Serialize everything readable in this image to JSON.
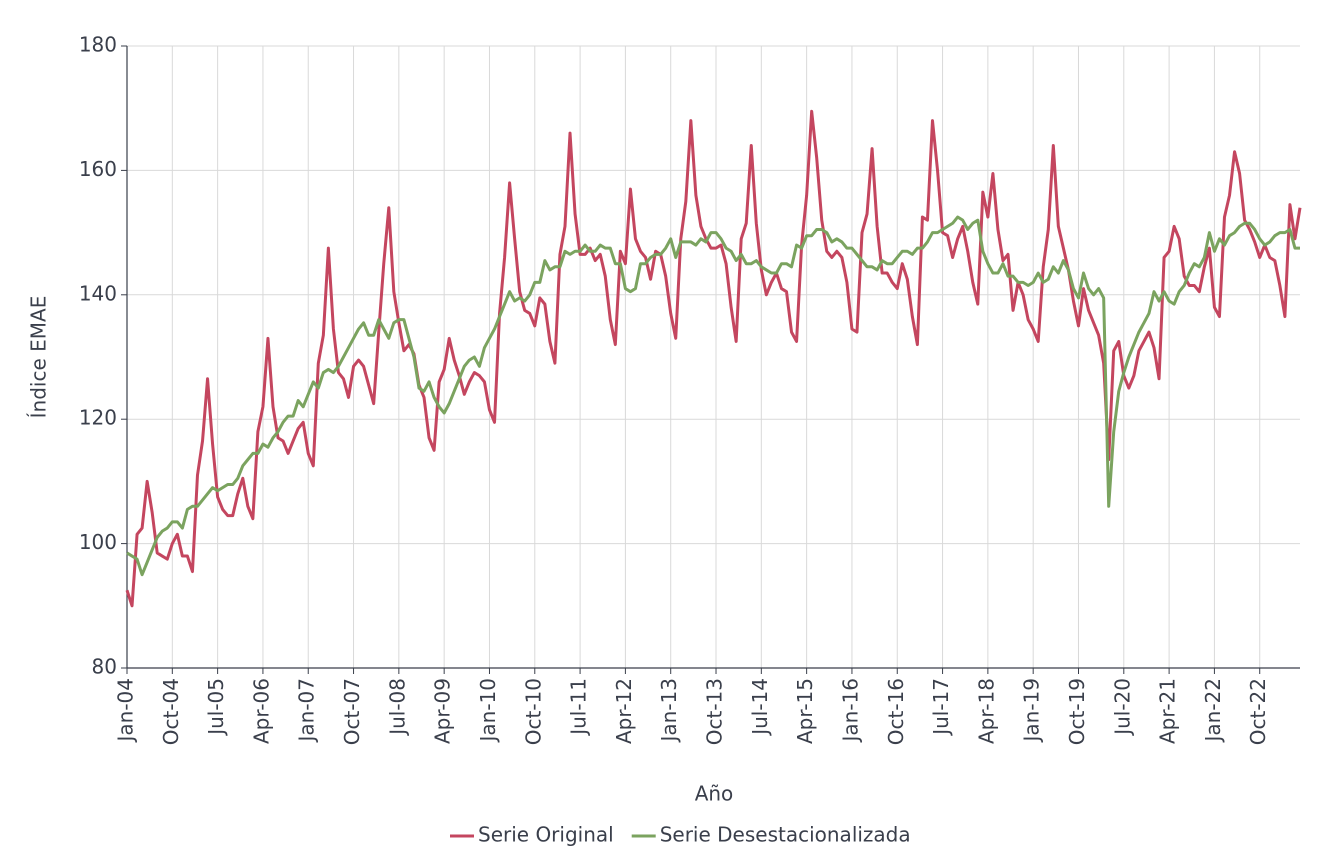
{
  "chart_data": {
    "type": "line",
    "x_label": "Año",
    "y_label": "Índice EMAE",
    "categories": [
      "Jan-04",
      null,
      null,
      null,
      null,
      null,
      null,
      null,
      null,
      "Oct-04",
      null,
      null,
      null,
      null,
      null,
      null,
      null,
      null,
      "Jul-05",
      null,
      null,
      null,
      null,
      null,
      null,
      null,
      null,
      "Apr-06",
      null,
      null,
      null,
      null,
      null,
      null,
      null,
      null,
      "Jan-07",
      null,
      null,
      null,
      null,
      null,
      null,
      null,
      null,
      "Oct-07",
      null,
      null,
      null,
      null,
      null,
      null,
      null,
      null,
      "Jul-08",
      null,
      null,
      null,
      null,
      null,
      null,
      null,
      null,
      "Apr-09",
      null,
      null,
      null,
      null,
      null,
      null,
      null,
      null,
      "Jan-10",
      null,
      null,
      null,
      null,
      null,
      null,
      null,
      null,
      "Oct-10",
      null,
      null,
      null,
      null,
      null,
      null,
      null,
      null,
      "Jul-11",
      null,
      null,
      null,
      null,
      null,
      null,
      null,
      null,
      "Apr-12",
      null,
      null,
      null,
      null,
      null,
      null,
      null,
      null,
      "Jan-13",
      null,
      null,
      null,
      null,
      null,
      null,
      null,
      null,
      "Oct-13",
      null,
      null,
      null,
      null,
      null,
      null,
      null,
      null,
      "Jul-14",
      null,
      null,
      null,
      null,
      null,
      null,
      null,
      null,
      "Apr-15",
      null,
      null,
      null,
      null,
      null,
      null,
      null,
      null,
      "Jan-16",
      null,
      null,
      null,
      null,
      null,
      null,
      null,
      null,
      "Oct-16",
      null,
      null,
      null,
      null,
      null,
      null,
      null,
      null,
      "Jul-17",
      null,
      null,
      null,
      null,
      null,
      null,
      null,
      null,
      "Apr-18",
      null,
      null,
      null,
      null,
      null,
      null,
      null,
      null,
      "Jan-19",
      null,
      null,
      null,
      null,
      null,
      null,
      null,
      null,
      "Oct-19",
      null,
      null,
      null,
      null,
      null,
      null,
      null,
      null,
      "Jul-20",
      null,
      null,
      null,
      null,
      null,
      null,
      null,
      null,
      "Apr-21",
      null,
      null,
      null,
      null,
      null,
      null,
      null,
      null,
      "Jan-22",
      null,
      null,
      null,
      null,
      null,
      null,
      null,
      null,
      "Oct-22",
      null,
      null,
      null,
      null,
      null,
      null,
      null,
      null
    ],
    "series": [
      {
        "name": "Serie Original",
        "color": "#c4465f",
        "values": [
          92.5,
          90,
          101.5,
          102.5,
          110,
          105,
          98.5,
          98,
          97.5,
          100,
          101.5,
          98,
          98,
          95.5,
          111,
          116.5,
          126.5,
          116,
          107.5,
          105.5,
          104.5,
          104.5,
          108,
          110.5,
          106,
          104,
          118,
          122,
          133,
          122,
          117,
          116.5,
          114.5,
          116.5,
          118.5,
          119.5,
          114.5,
          112.5,
          129,
          133.5,
          147.5,
          134.5,
          127.5,
          126.5,
          123.5,
          128.5,
          129.5,
          128.5,
          125.5,
          122.5,
          134,
          145,
          154,
          140.5,
          135.5,
          131,
          132,
          130.5,
          125.5,
          123.5,
          117,
          115,
          126,
          128,
          133,
          129.5,
          127,
          124,
          126,
          127.5,
          127,
          126,
          121.5,
          119.5,
          137,
          146,
          158,
          149,
          140.5,
          137.5,
          137,
          135,
          139.5,
          138.5,
          132.5,
          129,
          146.5,
          151,
          166,
          153,
          146.5,
          146.5,
          147.5,
          145.5,
          146.5,
          143,
          136,
          132,
          147,
          145,
          157,
          149,
          147,
          146,
          142.5,
          147,
          146.5,
          143,
          137,
          133,
          149,
          155,
          168,
          156,
          151,
          149,
          147.5,
          147.5,
          148,
          145,
          138,
          132.5,
          149,
          151.5,
          164,
          151.5,
          144,
          140,
          142,
          143.5,
          141,
          140.5,
          134,
          132.5,
          148,
          156,
          169.5,
          162,
          152,
          147,
          146,
          147,
          146,
          142,
          134.5,
          134,
          150,
          153,
          163.5,
          151,
          143.5,
          143.5,
          142,
          141,
          145,
          142.5,
          136.5,
          132,
          152.5,
          152,
          168,
          160,
          150,
          149.5,
          146,
          149,
          151,
          147,
          142,
          138.5,
          156.5,
          152.5,
          159.5,
          150.5,
          145.5,
          146.5,
          137.5,
          142,
          140,
          136,
          134.5,
          132.5,
          144.5,
          150.5,
          164,
          151,
          147.5,
          144,
          139,
          135,
          141,
          137.5,
          135.5,
          133.5,
          129,
          113.5,
          131,
          132.5,
          127,
          125,
          127,
          131,
          132.5,
          134,
          131.5,
          126.5,
          146,
          147,
          151,
          149,
          143,
          141.5,
          141.5,
          140.5,
          144.5,
          147.5,
          138,
          136.5,
          152.5,
          156,
          163,
          159.5,
          152,
          150.5,
          148.5,
          146,
          148,
          146,
          145.5,
          141.5,
          136.5,
          154.5,
          149,
          154
        ]
      },
      {
        "name": "Serie Desestacionalizada",
        "color": "#7ba35f",
        "values": [
          98.5,
          98,
          97.5,
          95,
          97,
          99,
          101,
          102,
          102.5,
          103.5,
          103.5,
          102.5,
          105.5,
          106,
          106,
          107,
          108,
          109,
          108.5,
          109,
          109.5,
          109.5,
          110.5,
          112.5,
          113.5,
          114.5,
          114.5,
          116,
          115.5,
          117,
          118,
          119.5,
          120.5,
          120.5,
          123,
          122,
          124,
          126,
          125,
          127.5,
          128,
          127.5,
          128.5,
          130,
          131.5,
          133,
          134.5,
          135.5,
          133.5,
          133.5,
          136,
          134.5,
          133,
          135.5,
          136,
          136,
          133,
          130,
          125,
          124.5,
          126,
          123.5,
          122,
          121,
          122.5,
          124.5,
          126.5,
          128.5,
          129.5,
          130,
          128.5,
          131.5,
          133,
          134.5,
          136.5,
          138.5,
          140.5,
          139,
          139.5,
          139,
          140,
          142,
          142,
          145.5,
          144,
          144.5,
          144.5,
          147,
          146.5,
          147,
          147,
          148,
          147,
          147,
          148,
          147.5,
          147.5,
          145,
          145,
          141,
          140.5,
          141,
          145,
          145,
          146,
          146.5,
          146.5,
          147.5,
          149,
          146,
          148.5,
          148.5,
          148.5,
          148,
          149,
          148.5,
          150,
          150,
          149,
          147.5,
          147,
          145.5,
          146.5,
          145,
          145,
          145.5,
          144.5,
          144,
          143.5,
          143.5,
          145,
          145,
          144.5,
          148,
          147.5,
          149.5,
          149.5,
          150.5,
          150.5,
          150,
          148.5,
          149,
          148.5,
          147.5,
          147.5,
          146.5,
          145.5,
          144.5,
          144.5,
          144,
          145.5,
          145,
          145,
          146,
          147,
          147,
          146.5,
          147.5,
          147.5,
          148.5,
          150,
          150,
          150.5,
          151,
          151.5,
          152.5,
          152,
          150.5,
          151.5,
          152,
          147,
          145,
          143.5,
          143.5,
          145,
          143,
          143,
          142,
          142,
          141.5,
          142,
          143.5,
          142,
          142.5,
          144.5,
          143.5,
          145.5,
          144,
          141,
          139.5,
          143.5,
          141,
          140,
          141,
          139.5,
          106,
          118,
          124.5,
          127.5,
          130,
          132,
          134,
          135.5,
          137,
          140.5,
          139,
          140.5,
          139,
          138.5,
          140.5,
          141.5,
          143.5,
          145,
          144.5,
          146,
          150,
          147,
          149,
          148,
          149.5,
          150,
          151,
          151.5,
          151.5,
          150.5,
          149,
          148,
          148.5,
          149.5,
          150,
          150,
          150.5,
          147.5,
          147.5
        ]
      }
    ],
    "ylim": [
      80,
      180
    ],
    "yticks": [
      80,
      100,
      120,
      140,
      160,
      180
    ],
    "grid": true,
    "legend": "bottom"
  }
}
